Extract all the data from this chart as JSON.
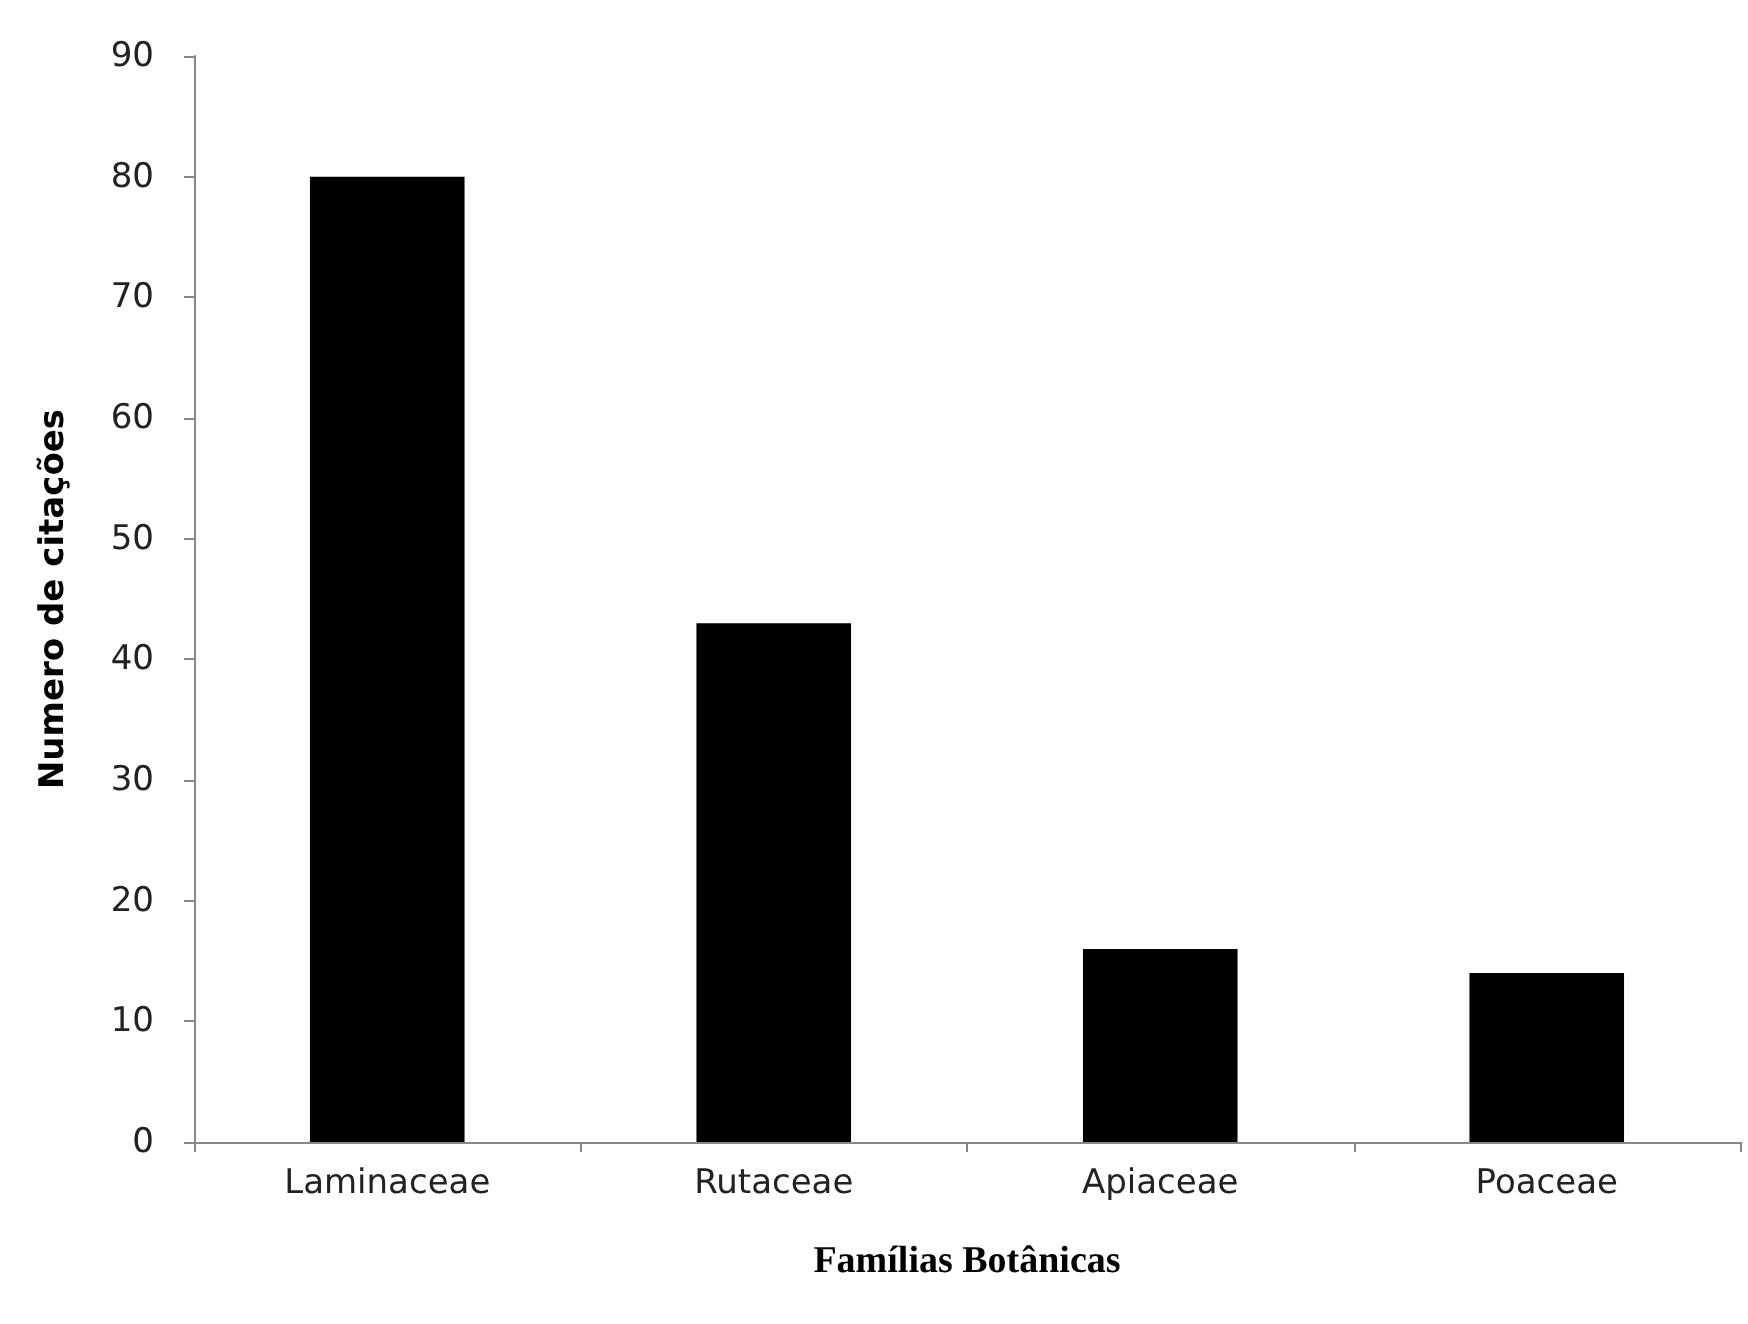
{
  "chart_data": {
    "type": "bar",
    "xlabel": "Famílias Botânicas",
    "ylabel": "Numero de citações",
    "categories": [
      "Laminaceae",
      "Rutaceae",
      "Apiaceae",
      "Poaceae"
    ],
    "values": [
      80,
      43,
      16,
      14
    ],
    "color": "#000000",
    "ylim": [
      0,
      90
    ],
    "yticks": [
      0,
      10,
      20,
      30,
      40,
      50,
      60,
      70,
      80,
      90
    ],
    "grid": false
  }
}
